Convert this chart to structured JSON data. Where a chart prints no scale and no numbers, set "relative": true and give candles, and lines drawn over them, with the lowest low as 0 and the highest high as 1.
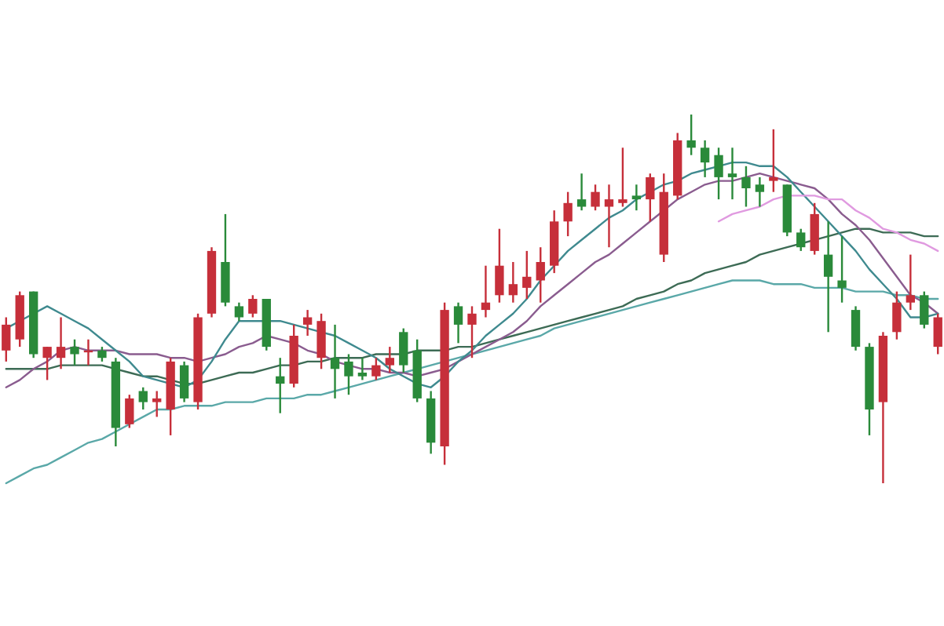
{
  "chart_data": {
    "type": "candlestick",
    "relative": true,
    "tick_labels": false,
    "categories": [
      null,
      null,
      null,
      null,
      null,
      null,
      null,
      null,
      null,
      null,
      null,
      null,
      null,
      null,
      null,
      null,
      null,
      null,
      null,
      null,
      null,
      null,
      null,
      null,
      null,
      null,
      null,
      null,
      null,
      null,
      null,
      null,
      null,
      null,
      null,
      null,
      null,
      null,
      null,
      null,
      null,
      null,
      null,
      null,
      null,
      null,
      null,
      null,
      null,
      null,
      null,
      null,
      null,
      null,
      null,
      null,
      null,
      null,
      null,
      null,
      null,
      null,
      null,
      null,
      null,
      null,
      null,
      null,
      null
    ],
    "ohlc": [
      [
        0.36,
        0.45,
        0.33,
        0.43
      ],
      [
        0.39,
        0.52,
        0.37,
        0.51
      ],
      [
        0.52,
        0.52,
        0.34,
        0.35
      ],
      [
        0.34,
        0.37,
        0.28,
        0.37
      ],
      [
        0.34,
        0.45,
        0.31,
        0.37
      ],
      [
        0.37,
        0.39,
        0.32,
        0.35
      ],
      [
        0.355,
        0.39,
        0.32,
        0.36
      ],
      [
        0.36,
        0.37,
        0.33,
        0.34
      ],
      [
        0.33,
        0.34,
        0.1,
        0.15
      ],
      [
        0.16,
        0.24,
        0.15,
        0.23
      ],
      [
        0.25,
        0.26,
        0.2,
        0.22
      ],
      [
        0.22,
        0.25,
        0.18,
        0.23
      ],
      [
        0.2,
        0.34,
        0.13,
        0.33
      ],
      [
        0.32,
        0.33,
        0.22,
        0.23
      ],
      [
        0.22,
        0.46,
        0.2,
        0.45
      ],
      [
        0.46,
        0.64,
        0.45,
        0.63
      ],
      [
        0.6,
        0.73,
        0.48,
        0.49
      ],
      [
        0.48,
        0.49,
        0.44,
        0.45
      ],
      [
        0.46,
        0.51,
        0.45,
        0.5
      ],
      [
        0.5,
        0.5,
        0.36,
        0.37
      ],
      [
        0.29,
        0.34,
        0.19,
        0.27
      ],
      [
        0.27,
        0.43,
        0.26,
        0.4
      ],
      [
        0.43,
        0.47,
        0.4,
        0.45
      ],
      [
        0.34,
        0.46,
        0.31,
        0.44
      ],
      [
        0.34,
        0.43,
        0.23,
        0.31
      ],
      [
        0.33,
        0.35,
        0.24,
        0.29
      ],
      [
        0.3,
        0.34,
        0.28,
        0.29
      ],
      [
        0.29,
        0.34,
        0.28,
        0.32
      ],
      [
        0.32,
        0.37,
        0.3,
        0.34
      ],
      [
        0.41,
        0.42,
        0.3,
        0.32
      ],
      [
        0.36,
        0.39,
        0.22,
        0.23
      ],
      [
        0.23,
        0.25,
        0.08,
        0.11
      ],
      [
        0.1,
        0.49,
        0.05,
        0.47
      ],
      [
        0.48,
        0.49,
        0.38,
        0.43
      ],
      [
        0.43,
        0.48,
        0.34,
        0.46
      ],
      [
        0.47,
        0.59,
        0.45,
        0.49
      ],
      [
        0.51,
        0.69,
        0.49,
        0.59
      ],
      [
        0.51,
        0.6,
        0.49,
        0.54
      ],
      [
        0.53,
        0.63,
        0.5,
        0.56
      ],
      [
        0.55,
        0.64,
        0.49,
        0.6
      ],
      [
        0.59,
        0.74,
        0.57,
        0.71
      ],
      [
        0.71,
        0.79,
        0.67,
        0.76
      ],
      [
        0.77,
        0.84,
        0.74,
        0.75
      ],
      [
        0.75,
        0.81,
        0.74,
        0.79
      ],
      [
        0.75,
        0.81,
        0.64,
        0.77
      ],
      [
        0.76,
        0.91,
        0.75,
        0.77
      ],
      [
        0.78,
        0.81,
        0.74,
        0.77
      ],
      [
        0.77,
        0.84,
        0.71,
        0.83
      ],
      [
        0.62,
        0.84,
        0.6,
        0.79
      ],
      [
        0.78,
        0.95,
        0.77,
        0.93
      ],
      [
        0.93,
        1,
        0.89,
        0.91
      ],
      [
        0.91,
        0.93,
        0.83,
        0.87
      ],
      [
        0.89,
        0.91,
        0.77,
        0.83
      ],
      [
        0.84,
        0.91,
        0.77,
        0.83
      ],
      [
        0.83,
        0.86,
        0.75,
        0.8
      ],
      [
        0.81,
        0.83,
        0.75,
        0.79
      ],
      [
        0.82,
        0.96,
        0.79,
        0.83
      ],
      [
        0.81,
        0.81,
        0.67,
        0.68
      ],
      [
        0.68,
        0.69,
        0.63,
        0.64
      ],
      [
        0.63,
        0.76,
        0.62,
        0.73
      ],
      [
        0.62,
        0.71,
        0.41,
        0.56
      ],
      [
        0.55,
        0.67,
        0.49,
        0.53
      ],
      [
        0.47,
        0.48,
        0.36,
        0.37
      ],
      [
        0.37,
        0.38,
        0.13,
        0.2
      ],
      [
        0.22,
        0.41,
        0,
        0.4
      ],
      [
        0.41,
        0.52,
        0.39,
        0.49
      ],
      [
        0.49,
        0.62,
        0.47,
        0.51
      ],
      [
        0.51,
        0.52,
        0.42,
        0.43
      ],
      [
        0.37,
        0.46,
        0.35,
        0.45
      ]
    ],
    "series": [
      {
        "type": "line",
        "color": "#5aa8a8",
        "values": [
          0,
          0.02,
          0.04,
          0.05,
          0.07,
          0.09,
          0.11,
          0.12,
          0.14,
          0.16,
          0.18,
          0.2,
          0.2,
          0.21,
          0.21,
          0.21,
          0.22,
          0.22,
          0.22,
          0.23,
          0.23,
          0.23,
          0.24,
          0.24,
          0.25,
          0.26,
          0.27,
          0.28,
          0.29,
          0.3,
          0.31,
          0.32,
          0.33,
          0.34,
          0.35,
          0.36,
          0.37,
          0.38,
          0.39,
          0.4,
          0.42,
          0.43,
          0.44,
          0.45,
          0.46,
          0.47,
          0.48,
          0.49,
          0.5,
          0.51,
          0.52,
          0.53,
          0.54,
          0.55,
          0.55,
          0.55,
          0.54,
          0.54,
          0.54,
          0.53,
          0.53,
          0.53,
          0.52,
          0.52,
          0.52,
          0.51,
          0.51,
          0.5,
          0.5
        ]
      },
      {
        "type": "line",
        "color": "#3d6b55",
        "values": [
          0.31,
          0.31,
          0.31,
          0.31,
          0.32,
          0.32,
          0.32,
          0.32,
          0.31,
          0.3,
          0.29,
          0.29,
          0.28,
          0.27,
          0.27,
          0.28,
          0.29,
          0.3,
          0.3,
          0.31,
          0.32,
          0.32,
          0.33,
          0.33,
          0.34,
          0.34,
          0.34,
          0.35,
          0.35,
          0.35,
          0.36,
          0.36,
          0.36,
          0.37,
          0.37,
          0.38,
          0.39,
          0.4,
          0.41,
          0.42,
          0.43,
          0.44,
          0.45,
          0.46,
          0.47,
          0.48,
          0.5,
          0.51,
          0.52,
          0.54,
          0.55,
          0.57,
          0.58,
          0.59,
          0.6,
          0.62,
          0.63,
          0.64,
          0.65,
          0.66,
          0.67,
          0.68,
          0.69,
          0.69,
          0.68,
          0.68,
          0.68,
          0.67,
          0.67
        ]
      },
      {
        "type": "line",
        "color": "#8a5c8f",
        "values": [
          0.26,
          0.28,
          0.31,
          0.33,
          0.36,
          0.37,
          0.36,
          0.36,
          0.36,
          0.35,
          0.35,
          0.35,
          0.34,
          0.34,
          0.33,
          0.34,
          0.35,
          0.37,
          0.38,
          0.4,
          0.39,
          0.38,
          0.36,
          0.35,
          0.33,
          0.32,
          0.31,
          0.31,
          0.3,
          0.3,
          0.29,
          0.3,
          0.31,
          0.33,
          0.35,
          0.37,
          0.39,
          0.41,
          0.44,
          0.48,
          0.51,
          0.54,
          0.57,
          0.6,
          0.62,
          0.65,
          0.68,
          0.71,
          0.74,
          0.77,
          0.79,
          0.81,
          0.82,
          0.82,
          0.83,
          0.84,
          0.83,
          0.82,
          0.81,
          0.8,
          0.77,
          0.73,
          0.7,
          0.66,
          0.61,
          0.56,
          0.51,
          0.49,
          0.46
        ]
      },
      {
        "type": "line",
        "color": "#3f8a8f",
        "values": [
          0.42,
          0.44,
          0.46,
          0.48,
          0.46,
          0.44,
          0.42,
          0.39,
          0.36,
          0.33,
          0.29,
          0.28,
          0.27,
          0.26,
          0.28,
          0.33,
          0.39,
          0.44,
          0.44,
          0.44,
          0.44,
          0.43,
          0.42,
          0.41,
          0.4,
          0.38,
          0.36,
          0.34,
          0.31,
          0.29,
          0.27,
          0.26,
          0.29,
          0.33,
          0.36,
          0.4,
          0.43,
          0.46,
          0.5,
          0.55,
          0.59,
          0.63,
          0.66,
          0.69,
          0.72,
          0.74,
          0.77,
          0.79,
          0.81,
          0.82,
          0.84,
          0.85,
          0.86,
          0.87,
          0.87,
          0.86,
          0.86,
          0.83,
          0.79,
          0.75,
          0.71,
          0.67,
          0.63,
          0.58,
          0.54,
          0.5,
          0.45,
          0.45,
          0.46
        ]
      },
      {
        "type": "line",
        "color": "#e09ae0",
        "values": [
          null,
          null,
          null,
          null,
          null,
          null,
          null,
          null,
          null,
          null,
          null,
          null,
          null,
          null,
          null,
          null,
          null,
          null,
          null,
          null,
          null,
          null,
          null,
          null,
          null,
          null,
          null,
          null,
          null,
          null,
          null,
          null,
          null,
          null,
          null,
          null,
          null,
          null,
          null,
          null,
          null,
          null,
          null,
          null,
          null,
          null,
          null,
          null,
          null,
          null,
          null,
          null,
          0.71,
          0.73,
          0.74,
          0.75,
          0.77,
          0.78,
          0.78,
          0.78,
          0.77,
          0.77,
          0.74,
          0.72,
          0.69,
          0.68,
          0.66,
          0.65,
          0.63
        ]
      }
    ]
  }
}
